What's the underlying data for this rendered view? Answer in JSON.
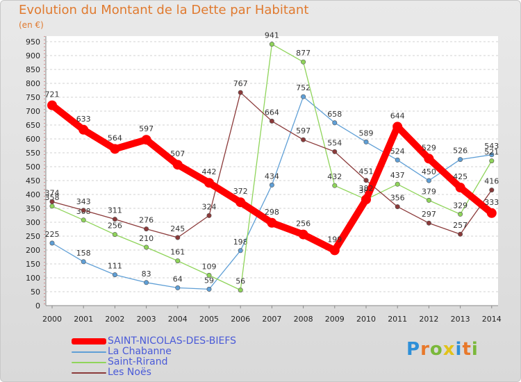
{
  "title": "Evolution du Montant de la Dette par Habitant",
  "subtitle": "(en €)",
  "brand": "Proxiti",
  "chart_data": {
    "type": "line",
    "title": "Evolution du Montant de la Dette par Habitant",
    "unit_label": "(en €)",
    "ylim": [
      0,
      950
    ],
    "ytick_step": 50,
    "grid": "horizontal",
    "legend_position": "bottom-left",
    "x": [
      "2000",
      "2001",
      "2002",
      "2003",
      "2004",
      "2005",
      "2006",
      "2007",
      "2008",
      "2009",
      "2010",
      "2011",
      "2012",
      "2013",
      "2014"
    ],
    "series": [
      {
        "name": "SAINT-NICOLAS-DES-BIEFS",
        "color": "#ff0000",
        "emphasis": true,
        "values": [
          721,
          633,
          564,
          597,
          507,
          442,
          372,
          298,
          256,
          199,
          382,
          644,
          529,
          425,
          333
        ]
      },
      {
        "name": "La Chabanne",
        "color": "#5f9fd6",
        "emphasis": false,
        "values": [
          225,
          158,
          111,
          83,
          64,
          59,
          198,
          434,
          752,
          658,
          589,
          524,
          450,
          526,
          543
        ]
      },
      {
        "name": "Saint-Rirand",
        "color": "#8fd45a",
        "emphasis": false,
        "values": [
          358,
          308,
          256,
          210,
          161,
          109,
          56,
          941,
          877,
          432,
          382,
          437,
          379,
          329,
          521
        ]
      },
      {
        "name": "Les Noës",
        "color": "#8b3a3a",
        "emphasis": false,
        "values": [
          374,
          343,
          311,
          276,
          245,
          324,
          767,
          664,
          597,
          554,
          451,
          356,
          297,
          257,
          416
        ]
      }
    ]
  }
}
